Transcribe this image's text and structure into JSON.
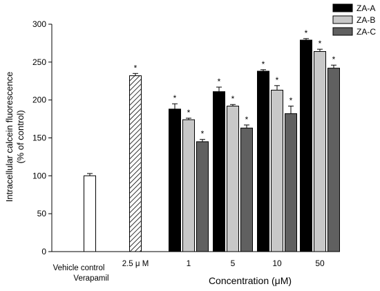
{
  "chart_data": {
    "type": "bar",
    "title": "",
    "xlabel": "Concentration (μM)",
    "ylabel_line1": "Intracellular calcein fluorescence",
    "ylabel_line2": "(% of control)",
    "ylim": [
      0,
      300
    ],
    "yticks": [
      0,
      50,
      100,
      150,
      200,
      250,
      300
    ],
    "legend_position": "top-right",
    "controls": [
      {
        "label_line1": "Vehicle control",
        "label_line2": "",
        "value": 100,
        "error": 3,
        "star": false,
        "style": "white"
      },
      {
        "label_line1": "Verapamil",
        "label_line2": "2.5 μ M",
        "value": 232,
        "error": 3,
        "star": true,
        "style": "hatched"
      }
    ],
    "categories": [
      "1",
      "5",
      "10",
      "50"
    ],
    "series": [
      {
        "name": "ZA-A",
        "color": "#000000",
        "values": [
          188,
          211,
          238,
          279
        ],
        "errors": [
          7,
          6,
          2,
          2
        ]
      },
      {
        "name": "ZA-B",
        "color": "#c8c8c8",
        "values": [
          174,
          192,
          213,
          264
        ],
        "errors": [
          2,
          2,
          6,
          3
        ]
      },
      {
        "name": "ZA-C",
        "color": "#606060",
        "values": [
          145,
          163,
          182,
          242
        ],
        "errors": [
          3,
          4,
          10,
          4
        ]
      }
    ],
    "significance_marker": "*",
    "grid": false
  }
}
